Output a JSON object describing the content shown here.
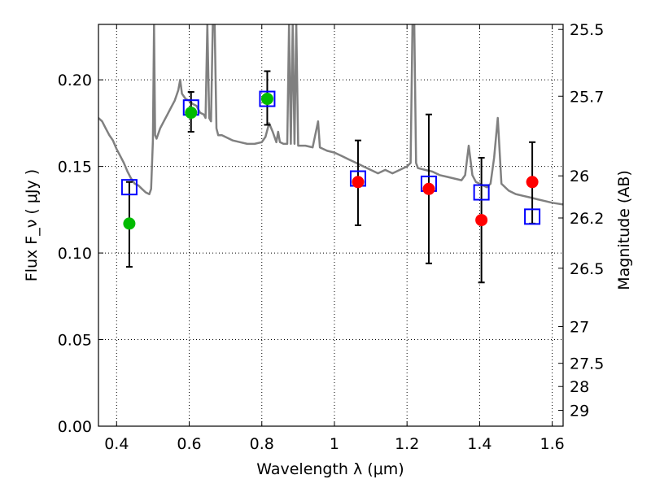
{
  "chart_data": {
    "type": "scatter",
    "xlabel": "Wavelength  λ (μm)",
    "ylabel": "Flux  F_ν  ( μJy )",
    "y2label": "Magnitude (AB)",
    "xlim": [
      0.35,
      1.63
    ],
    "ylim": [
      0.0,
      0.232
    ],
    "grid": true,
    "x_ticks": [
      {
        "value": 0.4,
        "label": "0.4"
      },
      {
        "value": 0.6,
        "label": "0.6"
      },
      {
        "value": 0.8,
        "label": "0.8"
      },
      {
        "value": 1.0,
        "label": "1"
      },
      {
        "value": 1.2,
        "label": "1.2"
      },
      {
        "value": 1.4,
        "label": "1.4"
      },
      {
        "value": 1.6,
        "label": "1.6"
      }
    ],
    "y_ticks": [
      {
        "value": 0.0,
        "label": "0.00"
      },
      {
        "value": 0.05,
        "label": "0.05"
      },
      {
        "value": 0.1,
        "label": "0.10"
      },
      {
        "value": 0.15,
        "label": "0.15"
      },
      {
        "value": 0.2,
        "label": "0.20"
      }
    ],
    "y2_ticks": [
      {
        "mag": 25.5,
        "label": "25.5"
      },
      {
        "mag": 25.7,
        "label": "25.7"
      },
      {
        "mag": 26.0,
        "label": "26"
      },
      {
        "mag": 26.2,
        "label": "26.2"
      },
      {
        "mag": 26.5,
        "label": "26.5"
      },
      {
        "mag": 27.0,
        "label": "27"
      },
      {
        "mag": 27.5,
        "label": "27.5"
      },
      {
        "mag": 28.0,
        "label": "28"
      },
      {
        "mag": 29.0,
        "label": "29"
      }
    ],
    "series": [
      {
        "kind": "model_spectrum",
        "color": "#808080",
        "points": [
          [
            0.35,
            0.178
          ],
          [
            0.36,
            0.176
          ],
          [
            0.37,
            0.172
          ],
          [
            0.38,
            0.168
          ],
          [
            0.39,
            0.165
          ],
          [
            0.4,
            0.16
          ],
          [
            0.41,
            0.156
          ],
          [
            0.42,
            0.152
          ],
          [
            0.43,
            0.147
          ],
          [
            0.44,
            0.143
          ],
          [
            0.45,
            0.14
          ],
          [
            0.46,
            0.139
          ],
          [
            0.47,
            0.137
          ],
          [
            0.48,
            0.135
          ],
          [
            0.49,
            0.134
          ],
          [
            0.495,
            0.137
          ],
          [
            0.5,
            0.165
          ],
          [
            0.503,
            0.232
          ],
          [
            0.506,
            0.168
          ],
          [
            0.51,
            0.166
          ],
          [
            0.52,
            0.172
          ],
          [
            0.53,
            0.176
          ],
          [
            0.54,
            0.18
          ],
          [
            0.55,
            0.184
          ],
          [
            0.56,
            0.188
          ],
          [
            0.57,
            0.194
          ],
          [
            0.575,
            0.2
          ],
          [
            0.58,
            0.192
          ],
          [
            0.59,
            0.189
          ],
          [
            0.6,
            0.188
          ],
          [
            0.61,
            0.186
          ],
          [
            0.62,
            0.185
          ],
          [
            0.63,
            0.181
          ],
          [
            0.64,
            0.18
          ],
          [
            0.645,
            0.178
          ],
          [
            0.65,
            0.232
          ],
          [
            0.655,
            0.178
          ],
          [
            0.66,
            0.176
          ],
          [
            0.665,
            0.232
          ],
          [
            0.67,
            0.232
          ],
          [
            0.675,
            0.172
          ],
          [
            0.68,
            0.168
          ],
          [
            0.69,
            0.168
          ],
          [
            0.7,
            0.167
          ],
          [
            0.72,
            0.165
          ],
          [
            0.74,
            0.164
          ],
          [
            0.76,
            0.163
          ],
          [
            0.78,
            0.163
          ],
          [
            0.8,
            0.164
          ],
          [
            0.81,
            0.167
          ],
          [
            0.82,
            0.175
          ],
          [
            0.83,
            0.17
          ],
          [
            0.84,
            0.164
          ],
          [
            0.845,
            0.17
          ],
          [
            0.85,
            0.164
          ],
          [
            0.86,
            0.163
          ],
          [
            0.87,
            0.163
          ],
          [
            0.875,
            0.232
          ],
          [
            0.88,
            0.163
          ],
          [
            0.885,
            0.232
          ],
          [
            0.89,
            0.163
          ],
          [
            0.895,
            0.232
          ],
          [
            0.9,
            0.162
          ],
          [
            0.92,
            0.162
          ],
          [
            0.94,
            0.161
          ],
          [
            0.955,
            0.176
          ],
          [
            0.96,
            0.161
          ],
          [
            0.98,
            0.159
          ],
          [
            1.0,
            0.158
          ],
          [
            1.02,
            0.156
          ],
          [
            1.04,
            0.154
          ],
          [
            1.06,
            0.152
          ],
          [
            1.08,
            0.15
          ],
          [
            1.1,
            0.148
          ],
          [
            1.12,
            0.146
          ],
          [
            1.14,
            0.148
          ],
          [
            1.16,
            0.146
          ],
          [
            1.18,
            0.148
          ],
          [
            1.2,
            0.15
          ],
          [
            1.21,
            0.152
          ],
          [
            1.215,
            0.232
          ],
          [
            1.22,
            0.232
          ],
          [
            1.225,
            0.152
          ],
          [
            1.23,
            0.149
          ],
          [
            1.25,
            0.148
          ],
          [
            1.27,
            0.147
          ],
          [
            1.29,
            0.145
          ],
          [
            1.31,
            0.144
          ],
          [
            1.33,
            0.143
          ],
          [
            1.35,
            0.142
          ],
          [
            1.36,
            0.145
          ],
          [
            1.37,
            0.162
          ],
          [
            1.38,
            0.145
          ],
          [
            1.39,
            0.141
          ],
          [
            1.4,
            0.14
          ],
          [
            1.42,
            0.138
          ],
          [
            1.43,
            0.14
          ],
          [
            1.44,
            0.155
          ],
          [
            1.45,
            0.178
          ],
          [
            1.46,
            0.14
          ],
          [
            1.48,
            0.136
          ],
          [
            1.5,
            0.134
          ],
          [
            1.52,
            0.133
          ],
          [
            1.54,
            0.132
          ],
          [
            1.56,
            0.131
          ],
          [
            1.58,
            0.13
          ],
          [
            1.6,
            0.129
          ],
          [
            1.63,
            0.128
          ]
        ]
      },
      {
        "kind": "model_photometry",
        "marker": "square",
        "color": "#0000ff",
        "points": [
          [
            0.435,
            0.138
          ],
          [
            0.605,
            0.184
          ],
          [
            0.815,
            0.189
          ],
          [
            1.065,
            0.143
          ],
          [
            1.26,
            0.14
          ],
          [
            1.405,
            0.135
          ],
          [
            1.545,
            0.121
          ]
        ]
      },
      {
        "kind": "observed_optical",
        "marker": "circle",
        "color": "#00bb00",
        "points": [
          {
            "x": 0.435,
            "y": 0.117,
            "err": [
              0.092,
              0.141
            ]
          },
          {
            "x": 0.605,
            "y": 0.181,
            "err": [
              0.17,
              0.193
            ]
          },
          {
            "x": 0.815,
            "y": 0.189,
            "err": [
              0.174,
              0.205
            ]
          }
        ]
      },
      {
        "kind": "observed_nir",
        "marker": "circle",
        "color": "#ff0000",
        "points": [
          {
            "x": 1.065,
            "y": 0.141,
            "err": [
              0.116,
              0.165
            ]
          },
          {
            "x": 1.26,
            "y": 0.137,
            "err": [
              0.094,
              0.18
            ]
          },
          {
            "x": 1.405,
            "y": 0.119,
            "err": [
              0.083,
              0.155
            ]
          },
          {
            "x": 1.545,
            "y": 0.141,
            "err": [
              0.117,
              0.164
            ]
          }
        ]
      }
    ]
  }
}
